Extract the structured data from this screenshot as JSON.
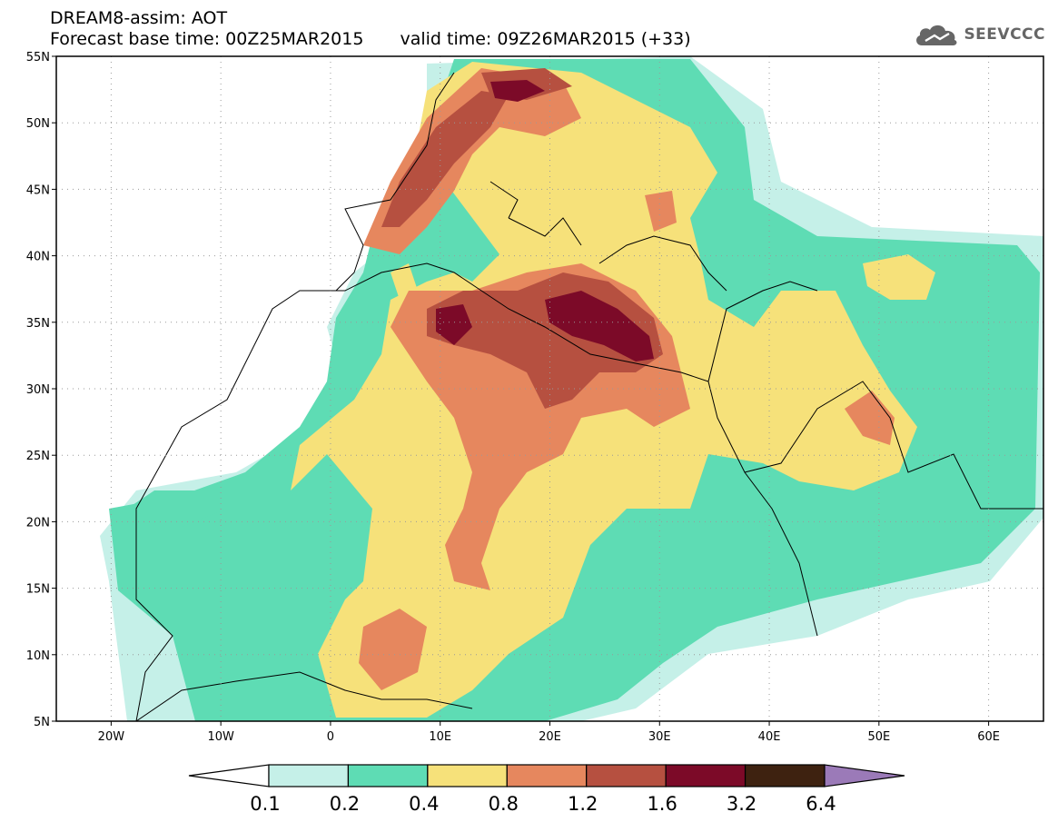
{
  "title": {
    "line1": "DREAM8-assim: AOT",
    "base_time": "Forecast base time: 00Z25MAR2015",
    "valid_time": "valid time: 09Z26MAR2015 (+33)"
  },
  "logo": {
    "text": "SEEVCCC",
    "icon": "cloud-icon"
  },
  "axes": {
    "lat_labels": [
      "55N",
      "50N",
      "45N",
      "40N",
      "35N",
      "30N",
      "25N",
      "20N",
      "15N",
      "10N",
      "5N"
    ],
    "lon_labels": [
      "20W",
      "10W",
      "0",
      "10E",
      "20E",
      "30E",
      "40E",
      "50E",
      "60E"
    ]
  },
  "colorbar": {
    "labels": [
      "0.1",
      "0.2",
      "0.4",
      "0.8",
      "1.2",
      "1.6",
      "3.2",
      "6.4"
    ],
    "colors": [
      "#c5f0e8",
      "#5edcb4",
      "#f6e17a",
      "#e6875e",
      "#b65040",
      "#7c0a28",
      "#3e2210",
      "#9b7ab8"
    ]
  }
}
